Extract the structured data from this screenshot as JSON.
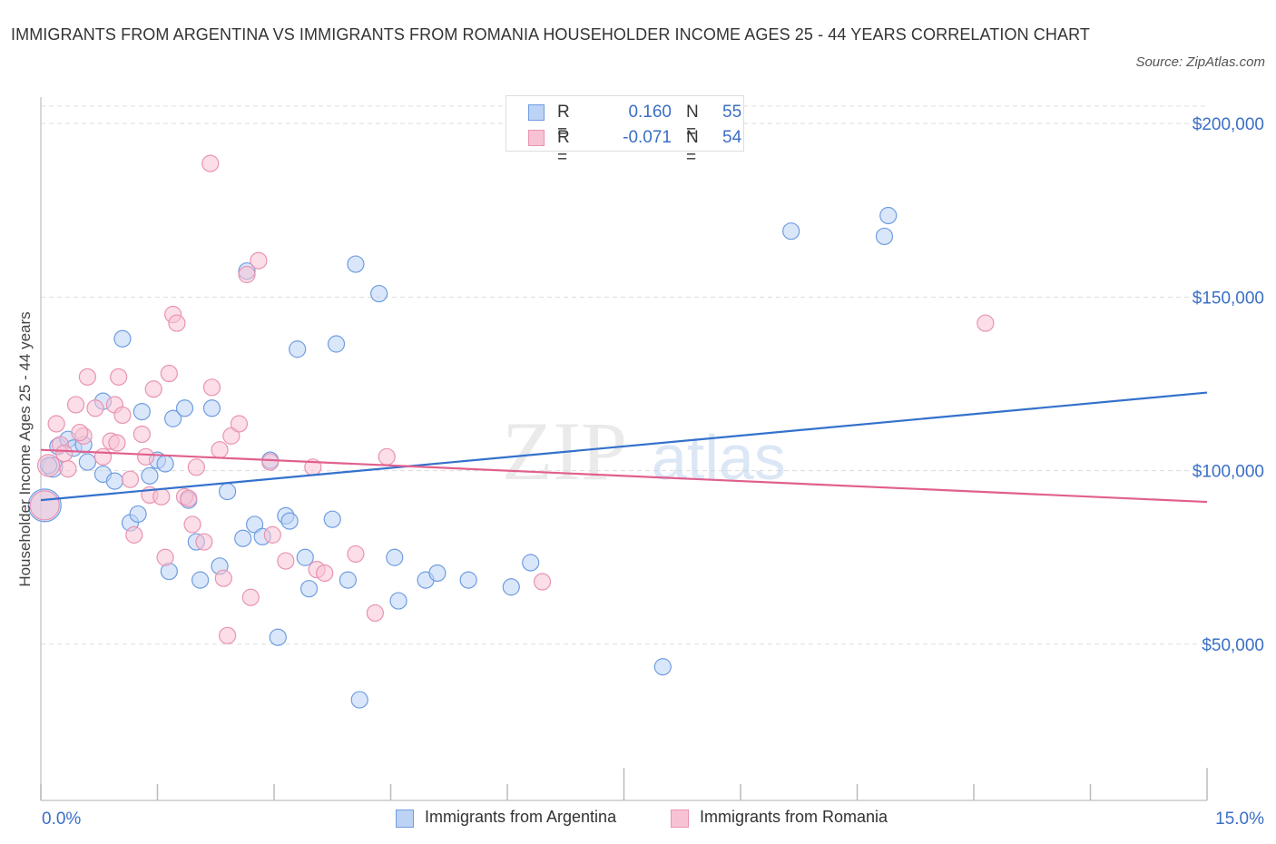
{
  "title": "IMMIGRANTS FROM ARGENTINA VS IMMIGRANTS FROM ROMANIA HOUSEHOLDER INCOME AGES 25 - 44 YEARS CORRELATION CHART",
  "source": "Source: ZipAtlas.com",
  "watermark": {
    "zip": "ZIP",
    "atlas": "atlas"
  },
  "legend": {
    "rows": [
      {
        "r_label": "R =",
        "r_value": "0.160",
        "n_label": "N =",
        "n_value": "55"
      },
      {
        "r_label": "R =",
        "r_value": "-0.071",
        "n_label": "N =",
        "n_value": "54"
      }
    ]
  },
  "colors": {
    "argentina_fill": "#bcd3f5",
    "argentina_stroke": "#6f9de0",
    "argentina_line": "#3471cc",
    "romania_fill": "#f7c3d4",
    "romania_stroke": "#e993b3",
    "romania_line": "#e0608e",
    "grid": "#dcdcdc",
    "axis": "#cccccc",
    "tick_text": "#3b6fc6"
  },
  "chart_data": {
    "type": "scatter",
    "title": "IMMIGRANTS FROM ARGENTINA VS IMMIGRANTS FROM ROMANIA HOUSEHOLDER INCOME AGES 25 - 44 YEARS CORRELATION CHART",
    "xlabel": "",
    "ylabel": "Householder Income Ages 25 - 44 years",
    "xlim": [
      0,
      15
    ],
    "ylim": [
      5000,
      205000
    ],
    "x_tick_labels": [
      "0.0%",
      "15.0%"
    ],
    "y_ticks": [
      200000,
      150000,
      100000,
      50000
    ],
    "y_tick_labels": [
      "$200,000",
      "$150,000",
      "$100,000",
      "$50,000"
    ],
    "legend_position": "top-center",
    "series": [
      {
        "name": "Immigrants from Argentina",
        "R": 0.16,
        "N": 55,
        "trend": {
          "x": [
            0,
            15
          ],
          "y": [
            91500,
            122500
          ]
        },
        "points": [
          [
            0.05,
            90000,
            18
          ],
          [
            0.15,
            101000,
            11
          ],
          [
            0.22,
            107000,
            9
          ],
          [
            0.35,
            109000,
            9
          ],
          [
            0.42,
            106500,
            9
          ],
          [
            0.55,
            107500,
            9
          ],
          [
            0.6,
            102500,
            9
          ],
          [
            0.8,
            99000,
            9
          ],
          [
            0.95,
            97000,
            9
          ],
          [
            0.8,
            120000,
            9
          ],
          [
            1.05,
            138000,
            9
          ],
          [
            1.3,
            117000,
            9
          ],
          [
            1.15,
            85000,
            9
          ],
          [
            1.25,
            87500,
            9
          ],
          [
            1.4,
            98500,
            9
          ],
          [
            1.5,
            103000,
            9
          ],
          [
            1.6,
            102000,
            9
          ],
          [
            1.7,
            115000,
            9
          ],
          [
            1.65,
            71000,
            9
          ],
          [
            1.85,
            118000,
            9
          ],
          [
            1.9,
            91500,
            9
          ],
          [
            2.0,
            79500,
            9
          ],
          [
            2.05,
            68500,
            9
          ],
          [
            2.2,
            118000,
            9
          ],
          [
            2.3,
            72500,
            9
          ],
          [
            2.4,
            94000,
            9
          ],
          [
            2.6,
            80500,
            9
          ],
          [
            2.65,
            157500,
            9
          ],
          [
            2.75,
            84500,
            9
          ],
          [
            2.85,
            81000,
            9
          ],
          [
            2.95,
            103000,
            9
          ],
          [
            3.05,
            52000,
            9
          ],
          [
            3.15,
            87000,
            9
          ],
          [
            3.2,
            85500,
            9
          ],
          [
            3.3,
            135000,
            9
          ],
          [
            3.4,
            75000,
            9
          ],
          [
            3.45,
            66000,
            9
          ],
          [
            3.75,
            86000,
            9
          ],
          [
            3.8,
            136500,
            9
          ],
          [
            3.95,
            68500,
            9
          ],
          [
            4.05,
            159500,
            9
          ],
          [
            4.1,
            34000,
            9
          ],
          [
            4.35,
            151000,
            9
          ],
          [
            4.55,
            75000,
            9
          ],
          [
            4.6,
            62500,
            9
          ],
          [
            4.95,
            68500,
            9
          ],
          [
            5.1,
            70500,
            9
          ],
          [
            5.5,
            68500,
            9
          ],
          [
            6.05,
            66500,
            9
          ],
          [
            6.3,
            73500,
            9
          ],
          [
            8.0,
            43500,
            9
          ],
          [
            9.65,
            169000,
            9
          ],
          [
            10.85,
            167500,
            9
          ],
          [
            10.9,
            173500,
            9
          ],
          [
            0.1,
            101500,
            9
          ]
        ]
      },
      {
        "name": "Immigrants from Romania",
        "R": -0.071,
        "N": 54,
        "trend": {
          "x": [
            0,
            15
          ],
          "y": [
            106000,
            91000
          ]
        },
        "points": [
          [
            0.05,
            90000,
            16
          ],
          [
            0.1,
            101500,
            12
          ],
          [
            0.2,
            113500,
            9
          ],
          [
            0.25,
            107500,
            9
          ],
          [
            0.35,
            100500,
            9
          ],
          [
            0.45,
            119000,
            9
          ],
          [
            0.55,
            110000,
            9
          ],
          [
            0.6,
            127000,
            9
          ],
          [
            0.7,
            118000,
            9
          ],
          [
            0.8,
            104000,
            9
          ],
          [
            0.9,
            108500,
            9
          ],
          [
            0.95,
            119000,
            9
          ],
          [
            0.98,
            108000,
            9
          ],
          [
            1.0,
            127000,
            9
          ],
          [
            1.05,
            116000,
            9
          ],
          [
            1.15,
            97500,
            9
          ],
          [
            1.2,
            81500,
            9
          ],
          [
            1.3,
            110500,
            9
          ],
          [
            1.35,
            104000,
            9
          ],
          [
            1.4,
            93000,
            9
          ],
          [
            1.45,
            123500,
            9
          ],
          [
            1.55,
            92500,
            9
          ],
          [
            1.6,
            75000,
            9
          ],
          [
            1.65,
            128000,
            9
          ],
          [
            1.7,
            145000,
            9
          ],
          [
            1.75,
            142500,
            9
          ],
          [
            1.85,
            92500,
            9
          ],
          [
            1.9,
            92000,
            9
          ],
          [
            1.95,
            84500,
            9
          ],
          [
            2.0,
            101000,
            9
          ],
          [
            2.1,
            79500,
            9
          ],
          [
            2.2,
            124000,
            9
          ],
          [
            2.3,
            106000,
            9
          ],
          [
            2.35,
            69000,
            9
          ],
          [
            2.4,
            52500,
            9
          ],
          [
            2.45,
            110000,
            9
          ],
          [
            2.55,
            113500,
            9
          ],
          [
            2.65,
            156500,
            9
          ],
          [
            2.7,
            63500,
            9
          ],
          [
            2.8,
            160500,
            9
          ],
          [
            2.95,
            102500,
            9
          ],
          [
            2.98,
            81500,
            9
          ],
          [
            3.15,
            74000,
            9
          ],
          [
            3.5,
            101000,
            9
          ],
          [
            3.55,
            71500,
            9
          ],
          [
            3.65,
            70500,
            9
          ],
          [
            4.05,
            76000,
            9
          ],
          [
            4.3,
            59000,
            9
          ],
          [
            4.45,
            104000,
            9
          ],
          [
            6.45,
            68000,
            9
          ],
          [
            12.15,
            142500,
            9
          ],
          [
            0.5,
            111000,
            9
          ],
          [
            0.3,
            105000,
            9
          ],
          [
            2.18,
            188500,
            9
          ]
        ]
      }
    ]
  }
}
